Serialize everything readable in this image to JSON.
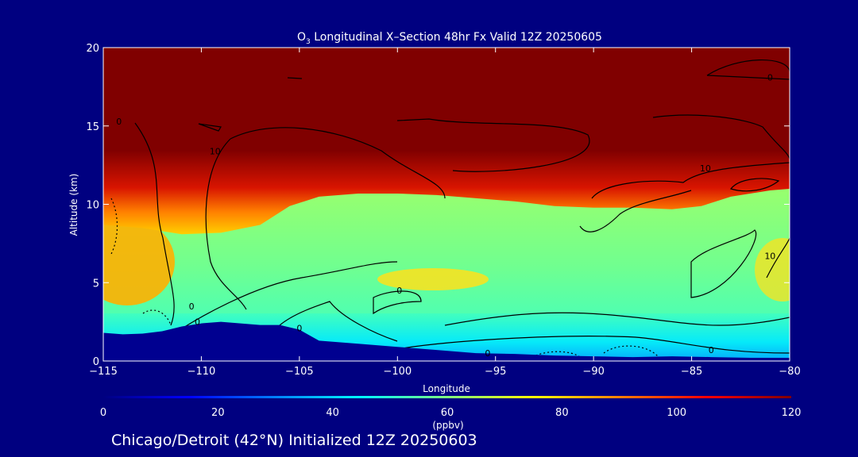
{
  "chart_data": {
    "type": "heatmap",
    "title": "O",
    "title_sub": "3",
    "title_rest": " Longitudinal X–Section 48hr  Fx Valid 12Z 20250605",
    "xlabel": "Longitude",
    "ylabel": "Altitude (km)",
    "xlim": [
      -115,
      -80
    ],
    "ylim": [
      0,
      20
    ],
    "x_ticks": [
      -115,
      -110,
      -105,
      -100,
      -95,
      -90,
      -85,
      -80
    ],
    "x_tick_labels": [
      "−115",
      "−110",
      "−105",
      "−100",
      "−95",
      "−90",
      "−85",
      "−80"
    ],
    "y_ticks": [
      0,
      5,
      10,
      15,
      20
    ],
    "y_tick_labels": [
      "0",
      "5",
      "10",
      "15",
      "20"
    ],
    "colorbar": {
      "range": [
        0,
        120
      ],
      "ticks": [
        0,
        20,
        40,
        60,
        80,
        100,
        120
      ],
      "tick_labels": [
        "0",
        "20",
        "40",
        "60",
        "80",
        "100",
        "120"
      ],
      "unit": "(ppbv)",
      "colors": [
        "#000080",
        "#0000ff",
        "#0080ff",
        "#00ffff",
        "#80ff80",
        "#ffff00",
        "#ff8000",
        "#ff0000",
        "#800000"
      ]
    },
    "terrain_km": [
      [
        -115,
        1.8
      ],
      [
        -114,
        1.7
      ],
      [
        -113,
        1.75
      ],
      [
        -112,
        1.9
      ],
      [
        -111,
        2.2
      ],
      [
        -110,
        2.4
      ],
      [
        -109,
        2.5
      ],
      [
        -108,
        2.4
      ],
      [
        -107,
        2.3
      ],
      [
        -106,
        2.3
      ],
      [
        -105,
        2.0
      ],
      [
        -104,
        1.3
      ],
      [
        -102,
        1.1
      ],
      [
        -100,
        0.9
      ],
      [
        -98,
        0.7
      ],
      [
        -96,
        0.5
      ],
      [
        -94,
        0.45
      ],
      [
        -92,
        0.35
      ],
      [
        -90,
        0.3
      ],
      [
        -88,
        0.25
      ],
      [
        -86,
        0.3
      ],
      [
        -84,
        0.25
      ],
      [
        -82,
        0.2
      ],
      [
        -80,
        0.2
      ]
    ],
    "tropopause_km": [
      [
        -115,
        9.8
      ],
      [
        -113,
        9.6
      ],
      [
        -111,
        9.2
      ],
      [
        -109,
        9.3
      ],
      [
        -107,
        9.8
      ],
      [
        -105.5,
        11.0
      ],
      [
        -104,
        11.6
      ],
      [
        -102,
        11.8
      ],
      [
        -100,
        11.8
      ],
      [
        -98,
        11.7
      ],
      [
        -96,
        11.5
      ],
      [
        -94,
        11.3
      ],
      [
        -92,
        11.0
      ],
      [
        -90,
        10.9
      ],
      [
        -88,
        10.9
      ],
      [
        -86,
        10.8
      ],
      [
        -84.5,
        11.0
      ],
      [
        -83,
        11.6
      ],
      [
        -81,
        12.0
      ],
      [
        -80,
        12.1
      ]
    ],
    "contour_labels": [
      {
        "x": -114.2,
        "y": 15.1,
        "text": "0"
      },
      {
        "x": -109.3,
        "y": 13.2,
        "text": "10"
      },
      {
        "x": -84.3,
        "y": 12.1,
        "text": "10"
      },
      {
        "x": -81.0,
        "y": 6.5,
        "text": "10"
      },
      {
        "x": -81.0,
        "y": 17.9,
        "text": "0"
      },
      {
        "x": -99.9,
        "y": 4.3,
        "text": "0"
      },
      {
        "x": -95.4,
        "y": 0.3,
        "text": "0"
      },
      {
        "x": -84.0,
        "y": 0.5,
        "text": "0"
      },
      {
        "x": -110.5,
        "y": 3.3,
        "text": "0"
      },
      {
        "x": -110.2,
        "y": 2.3,
        "text": "0"
      },
      {
        "x": -105.0,
        "y": 1.9,
        "text": "0"
      }
    ]
  },
  "footer": {
    "caption": "Chicago/Detroit (42°N) Initialized 12Z 20250603"
  }
}
